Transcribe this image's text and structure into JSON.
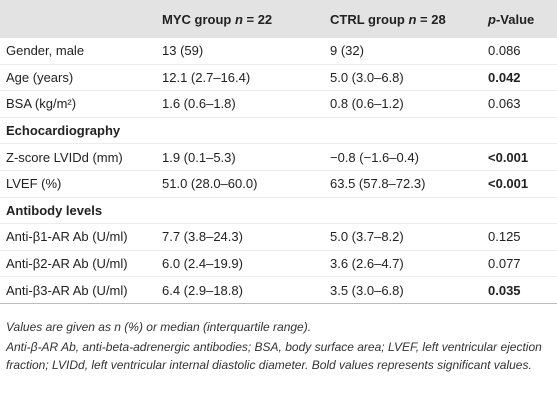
{
  "table": {
    "header": [
      [
        ""
      ],
      [
        "MYC group ",
        "n",
        " = 22"
      ],
      [
        "CTRL group ",
        "n",
        " = 28"
      ],
      [
        "p",
        "-Value"
      ]
    ],
    "rows": [
      {
        "cells": [
          "Gender, male",
          "13 (59)",
          "9 (32)",
          "0.086"
        ],
        "bold": false
      },
      {
        "cells": [
          "Age (years)",
          "12.1 (2.7–16.4)",
          "5.0 (3.0–6.8)",
          "0.042"
        ],
        "bold": true
      },
      {
        "cells": [
          "BSA (kg/m²)",
          "1.6 (0.6–1.8)",
          "0.8 (0.6–1.2)",
          "0.063"
        ],
        "bold": false
      },
      {
        "section": "Echocardiography"
      },
      {
        "cells": [
          "Z-score LVIDd (mm)",
          "1.9 (0.1–5.3)",
          "−0.8 (−1.6–0.4)",
          "<0.001"
        ],
        "bold": true
      },
      {
        "cells": [
          "LVEF (%)",
          "51.0 (28.0–60.0)",
          "63.5 (57.8–72.3)",
          "<0.001"
        ],
        "bold": true
      },
      {
        "section": "Antibody levels"
      },
      {
        "cells": [
          "Anti-β1-AR Ab (U/ml)",
          "7.7 (3.8–24.3)",
          "5.0 (3.7–8.2)",
          "0.125"
        ],
        "bold": false
      },
      {
        "cells": [
          "Anti-β2-AR Ab (U/ml)",
          "6.0 (2.4–19.9)",
          "3.6 (2.6–4.7)",
          "0.077"
        ],
        "bold": false
      },
      {
        "cells": [
          "Anti-β3-AR Ab (U/ml)",
          "6.4 (2.9–18.8)",
          "3.5 (3.0–6.8)",
          "0.035"
        ],
        "bold": true
      }
    ]
  },
  "footnotes": [
    "Values are given as n (%) or median (interquartile range).",
    "Anti-β-AR Ab, anti-beta-adrenergic antibodies; BSA, body surface area; LVEF, left ventricular ejection fraction; LVIDd, left ventricular internal diastolic diameter. Bold values represents significant values."
  ]
}
